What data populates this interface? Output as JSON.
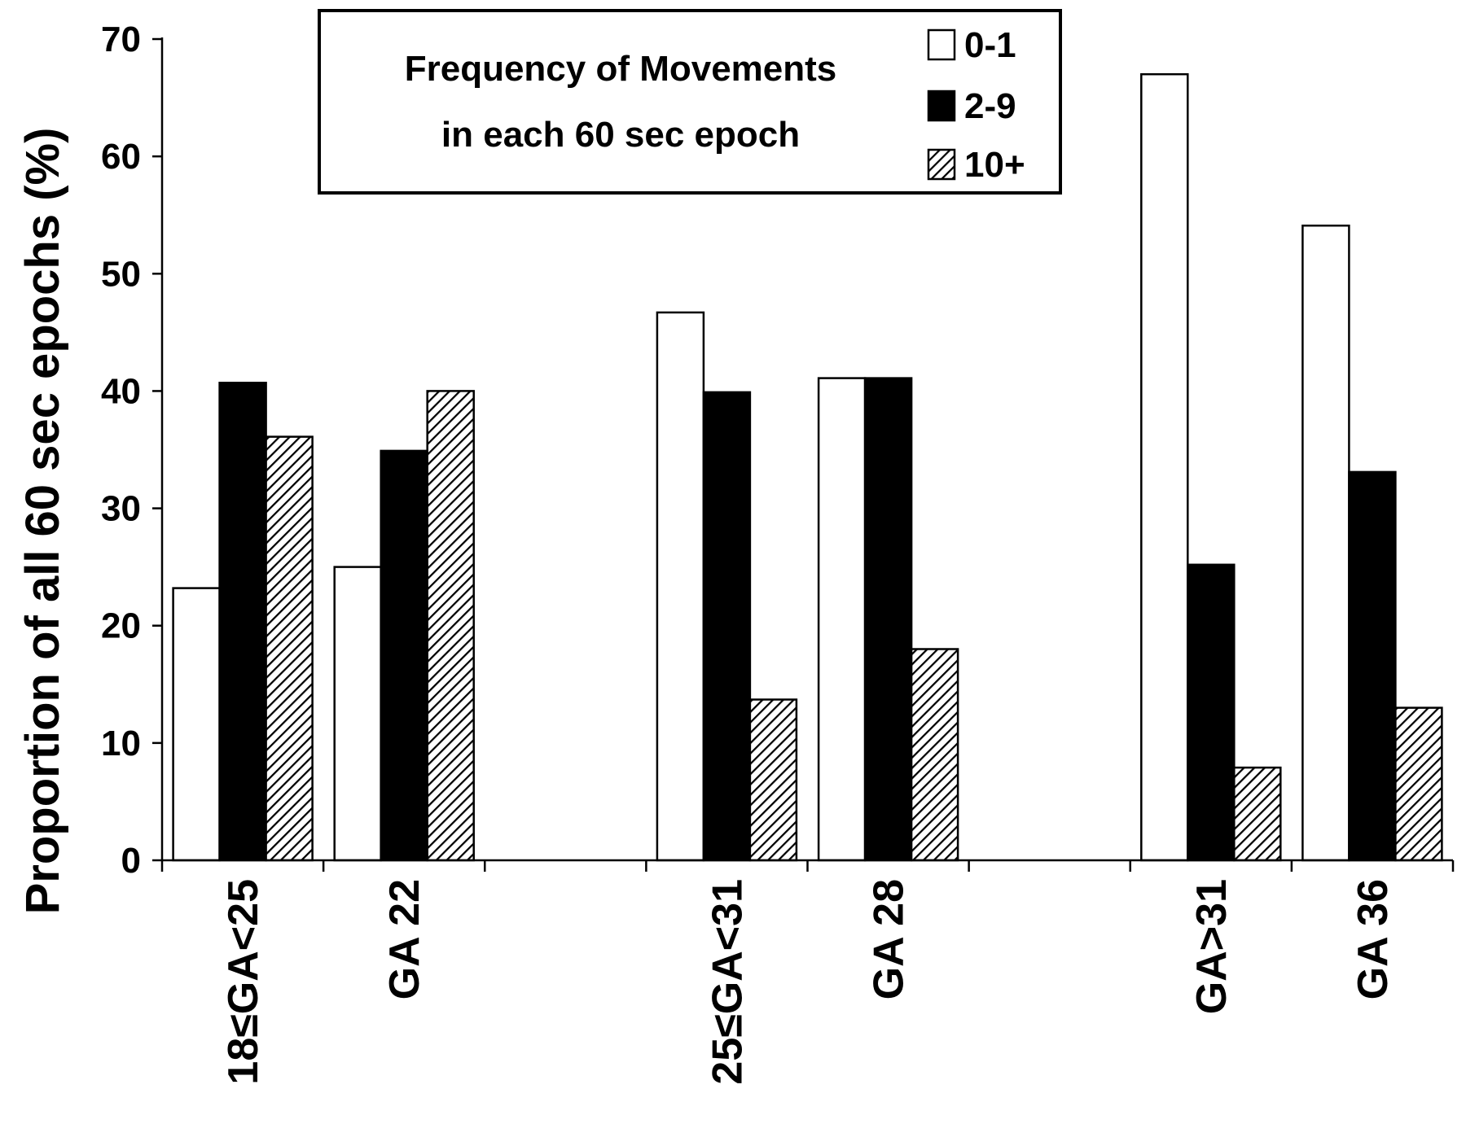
{
  "chart_data": {
    "type": "bar",
    "ylabel": "Proportion of all 60 sec epochs (%)",
    "xlabel": "",
    "ylim": [
      0,
      70
    ],
    "yticks": [
      0,
      10,
      20,
      30,
      40,
      50,
      60,
      70
    ],
    "categories": [
      "18≤GA<25",
      "GA 22",
      "",
      "25≤GA<31",
      "GA 28",
      "",
      "GA>31",
      "GA 36"
    ],
    "series": [
      {
        "name": "0-1",
        "values": [
          23.2,
          25.0,
          null,
          46.7,
          41.1,
          null,
          67.0,
          54.1
        ]
      },
      {
        "name": "2-9",
        "values": [
          40.7,
          34.9,
          null,
          39.9,
          41.1,
          null,
          25.2,
          33.1
        ]
      },
      {
        "name": "10+",
        "values": [
          36.1,
          40.0,
          null,
          13.7,
          18.0,
          null,
          7.9,
          13.0
        ]
      }
    ],
    "legend": {
      "title_lines": [
        "Frequency of Movements",
        "in each 60 sec epoch"
      ],
      "position": "top-center"
    },
    "grid": false,
    "colors": {
      "0-1": "#ffffff",
      "2-9": "#000000",
      "10+": "hatched"
    }
  }
}
